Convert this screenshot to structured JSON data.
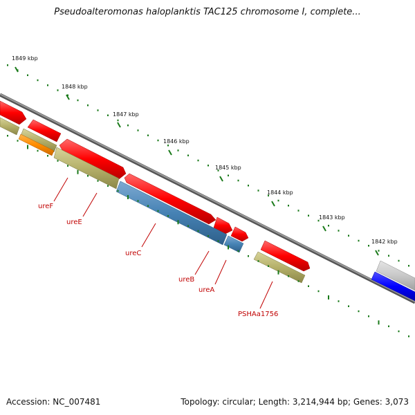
{
  "title": "Pseudoalteromonas haloplanktis TAC125 chromosome I, complete...",
  "footer": {
    "accession": "Accession: NC_007481",
    "summary": "Topology: circular; Length: 3,214,944 bp; Genes: 3,073"
  },
  "colors": {
    "backbone": "#808080",
    "tick": "#1a7a1a",
    "label": "#c00000",
    "red": "#ff0000",
    "olive": "#b5b06a",
    "orange": "#ff8c00",
    "steelblue": "#4682b4",
    "gray": "#c8c8c8",
    "blue": "#0000ff"
  },
  "ticks": [
    {
      "label": "1849 kbp"
    },
    {
      "label": "1848 kbp"
    },
    {
      "label": "1847 kbp"
    },
    {
      "label": "1846 kbp"
    },
    {
      "label": "1845 kbp"
    },
    {
      "label": "1844 kbp"
    },
    {
      "label": "1843 kbp"
    },
    {
      "label": "1842 kbp"
    }
  ],
  "gene_labels": [
    {
      "name": "ureF"
    },
    {
      "name": "ureE"
    },
    {
      "name": "ureC"
    },
    {
      "name": "ureB"
    },
    {
      "name": "ureA"
    },
    {
      "name": "PSHAa1756"
    }
  ]
}
